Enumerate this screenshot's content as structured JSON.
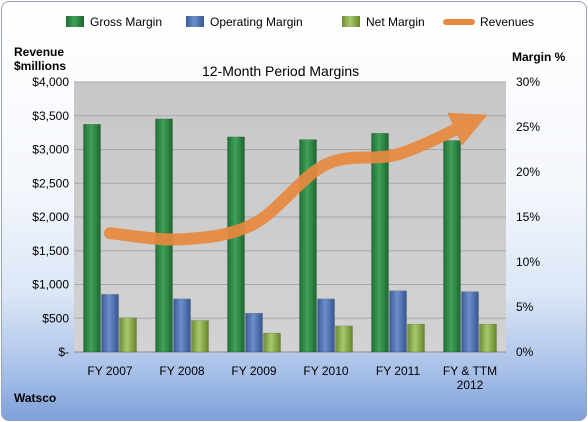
{
  "chart_data": {
    "type": "bar",
    "title": "12-Month Period Margins",
    "left_axis_title_line1": "Revenue",
    "left_axis_title_line2": "$millions",
    "right_axis_title": "Margin %",
    "footer_label": "Watsco",
    "categories": [
      "FY 2007",
      "FY 2008",
      "FY 2009",
      "FY 2010",
      "FY 2011",
      "FY & TTM 2012"
    ],
    "category_lines": [
      [
        "FY 2007"
      ],
      [
        "FY 2008"
      ],
      [
        "FY 2009"
      ],
      [
        "FY 2010"
      ],
      [
        "FY 2011"
      ],
      [
        "FY & TTM",
        "2012"
      ]
    ],
    "left_axis": {
      "min": 0,
      "max": 4000,
      "ticks": [
        "$-",
        "$500",
        "$1,000",
        "$1,500",
        "$2,000",
        "$2,500",
        "$3,000",
        "$3,500",
        "$4,000"
      ]
    },
    "right_axis": {
      "min": 0,
      "max": 30,
      "ticks": [
        "0%",
        "5%",
        "10%",
        "15%",
        "20%",
        "25%",
        "30%"
      ]
    },
    "series": [
      {
        "name": "Gross Margin",
        "type": "bar",
        "axis": "right",
        "color": "#2f8a46",
        "values": [
          25.3,
          25.9,
          23.9,
          23.6,
          24.3,
          23.5
        ]
      },
      {
        "name": "Operating Margin",
        "type": "bar",
        "axis": "right",
        "color": "#4f72b0",
        "values": [
          6.4,
          5.9,
          4.3,
          5.9,
          6.8,
          6.7
        ]
      },
      {
        "name": "Net Margin",
        "type": "bar",
        "axis": "right",
        "color": "#8fb050",
        "values": [
          3.8,
          3.5,
          2.1,
          2.9,
          3.1,
          3.1
        ]
      },
      {
        "name": "Revenues",
        "type": "line",
        "axis": "left",
        "color": "#e8893f",
        "values": [
          1760,
          1670,
          1900,
          2780,
          2930,
          3400
        ]
      }
    ],
    "grid": true,
    "legend_position": "top"
  }
}
